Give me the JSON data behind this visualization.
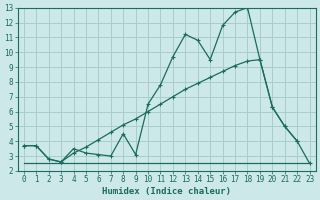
{
  "xlabel": "Humidex (Indice chaleur)",
  "xlim": [
    -0.5,
    23.5
  ],
  "ylim": [
    2,
    13
  ],
  "xticks": [
    0,
    1,
    2,
    3,
    4,
    5,
    6,
    7,
    8,
    9,
    10,
    11,
    12,
    13,
    14,
    15,
    16,
    17,
    18,
    19,
    20,
    21,
    22,
    23
  ],
  "yticks": [
    2,
    3,
    4,
    5,
    6,
    7,
    8,
    9,
    10,
    11,
    12,
    13
  ],
  "bg_color": "#cde8e8",
  "grid_color": "#b0d4d4",
  "line_color": "#1a6b60",
  "line1_x": [
    0,
    1,
    2,
    3,
    4,
    5,
    6,
    7,
    8,
    9,
    10,
    11,
    12,
    13,
    14,
    15,
    16,
    17,
    18,
    19,
    20,
    21,
    22
  ],
  "line1_y": [
    3.7,
    3.7,
    2.8,
    2.6,
    3.5,
    3.2,
    3.1,
    3.0,
    4.5,
    3.1,
    6.5,
    7.8,
    9.7,
    11.2,
    10.8,
    9.5,
    11.8,
    12.7,
    13.0,
    9.5,
    6.3,
    5.0,
    4.0
  ],
  "line2_x": [
    0,
    1,
    2,
    3,
    4,
    5,
    6,
    7,
    8,
    9,
    10,
    11,
    12,
    13,
    14,
    15,
    16,
    17,
    18,
    19,
    20,
    21,
    22,
    23
  ],
  "line2_y": [
    3.7,
    3.7,
    2.8,
    2.6,
    3.2,
    3.6,
    4.1,
    4.6,
    5.1,
    5.5,
    6.0,
    6.5,
    7.0,
    7.5,
    7.9,
    8.3,
    8.7,
    9.1,
    9.4,
    9.5,
    6.3,
    5.0,
    4.0,
    2.5
  ],
  "line3_x": [
    0,
    23
  ],
  "line3_y": [
    2.5,
    2.5
  ]
}
